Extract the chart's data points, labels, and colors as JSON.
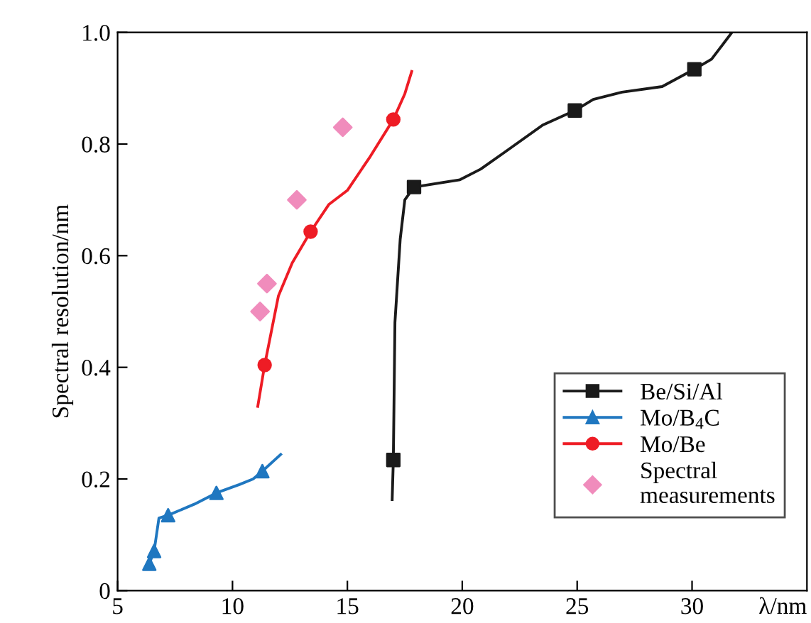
{
  "chart_data": {
    "type": "line",
    "xlabel": "λ/nm",
    "ylabel": "Spectral resolution/nm",
    "xlim": [
      5,
      35
    ],
    "xticks": [
      5,
      10,
      15,
      20,
      25,
      30
    ],
    "ylim": [
      0,
      1.0
    ],
    "yticks": [
      0,
      {
        "value": 0.2,
        "label": "0.2"
      },
      {
        "value": 0.4,
        "label": "0.4"
      },
      {
        "value": 0.6,
        "label": "0.6"
      },
      {
        "value": 0.8,
        "label": "0.8"
      },
      {
        "value": 1.0,
        "label": "1.0"
      }
    ],
    "grid": false,
    "legend": "bottom right",
    "line_style": "solid",
    "series": [
      {
        "name": "Be/Si/Al",
        "color": "#1a1a1a",
        "marker": "none",
        "x": [
          16.95,
          17.0,
          17.07,
          17.3,
          17.5,
          17.9,
          19.9,
          20.8,
          21.9,
          23.5,
          24.9,
          25.7,
          26.95,
          28.7,
          30.1,
          30.85,
          31.7
        ],
        "values": [
          0.163,
          0.234,
          0.48,
          0.63,
          0.7,
          0.723,
          0.736,
          0.755,
          0.787,
          0.834,
          0.86,
          0.88,
          0.893,
          0.903,
          0.934,
          0.952,
          0.998
        ]
      },
      {
        "type": "scatter",
        "color": "#1a1a1a",
        "marker": "square",
        "x": [
          17.0,
          17.9,
          24.9,
          30.1
        ],
        "values": [
          0.234,
          0.723,
          0.86,
          0.934
        ]
      },
      {
        "name": "Mo/B$_{4}$C",
        "color": "#1f77c0",
        "marker": "none",
        "x": [
          6.38,
          6.59,
          6.8,
          7.2,
          8.35,
          9.3,
          10.3,
          10.9,
          11.3,
          12.1
        ],
        "values": [
          0.048,
          0.071,
          0.13,
          0.135,
          0.155,
          0.175,
          0.19,
          0.2,
          0.214,
          0.244
        ]
      },
      {
        "type": "scatter",
        "color": "#1f77c0",
        "marker": "triangle",
        "x": [
          6.38,
          6.59,
          7.2,
          9.3,
          11.3
        ],
        "values": [
          0.048,
          0.071,
          0.135,
          0.175,
          0.214
        ]
      },
      {
        "name": "Mo/Be",
        "color": "#ee1c25",
        "marker": "none",
        "x": [
          11.1,
          11.4,
          12.0,
          12.6,
          13.4,
          14.2,
          15.0,
          16.0,
          17.0,
          17.5,
          17.8
        ],
        "values": [
          0.33,
          0.404,
          0.528,
          0.587,
          0.643,
          0.692,
          0.717,
          0.778,
          0.844,
          0.89,
          0.93
        ]
      },
      {
        "type": "scatter",
        "color": "#ee1c25",
        "marker": "circle",
        "x": [
          11.4,
          13.4,
          17.0
        ],
        "values": [
          0.404,
          0.643,
          0.844
        ]
      },
      {
        "type": "scatter",
        "name": "Spectral\nmeasurements",
        "color": "#f08cbc",
        "marker": "diamond",
        "x": [
          11.2,
          11.5,
          12.8,
          14.8
        ],
        "values": [
          0.5,
          0.55,
          0.7,
          0.83
        ]
      }
    ]
  }
}
